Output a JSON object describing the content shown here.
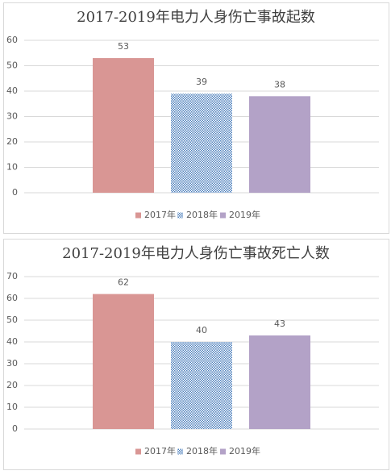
{
  "chart_data": [
    {
      "type": "bar",
      "title": "2017-2019年电力人身伤亡事故起数",
      "categories": [
        null
      ],
      "series": [
        {
          "name": "2017年",
          "color": "#d99694",
          "values": [
            53
          ]
        },
        {
          "name": "2018年",
          "color": "#4f81bd",
          "pattern": true,
          "values": [
            39
          ]
        },
        {
          "name": "2019年",
          "color": "#b3a2c7",
          "values": [
            38
          ]
        }
      ],
      "ylim": [
        0,
        60
      ],
      "yticks": [
        0,
        10,
        20,
        30,
        40,
        50,
        60
      ],
      "grid": true,
      "legend": "bottom"
    },
    {
      "type": "bar",
      "title": "2017-2019年电力人身伤亡事故死亡人数",
      "categories": [
        null
      ],
      "series": [
        {
          "name": "2017年",
          "color": "#d99694",
          "values": [
            62
          ]
        },
        {
          "name": "2018年",
          "color": "#4f81bd",
          "pattern": true,
          "values": [
            40
          ]
        },
        {
          "name": "2019年",
          "color": "#b3a2c7",
          "values": [
            43
          ]
        }
      ],
      "ylim": [
        0,
        70
      ],
      "yticks": [
        0,
        10,
        20,
        30,
        40,
        50,
        60,
        70
      ],
      "grid": true,
      "legend": "bottom"
    }
  ]
}
